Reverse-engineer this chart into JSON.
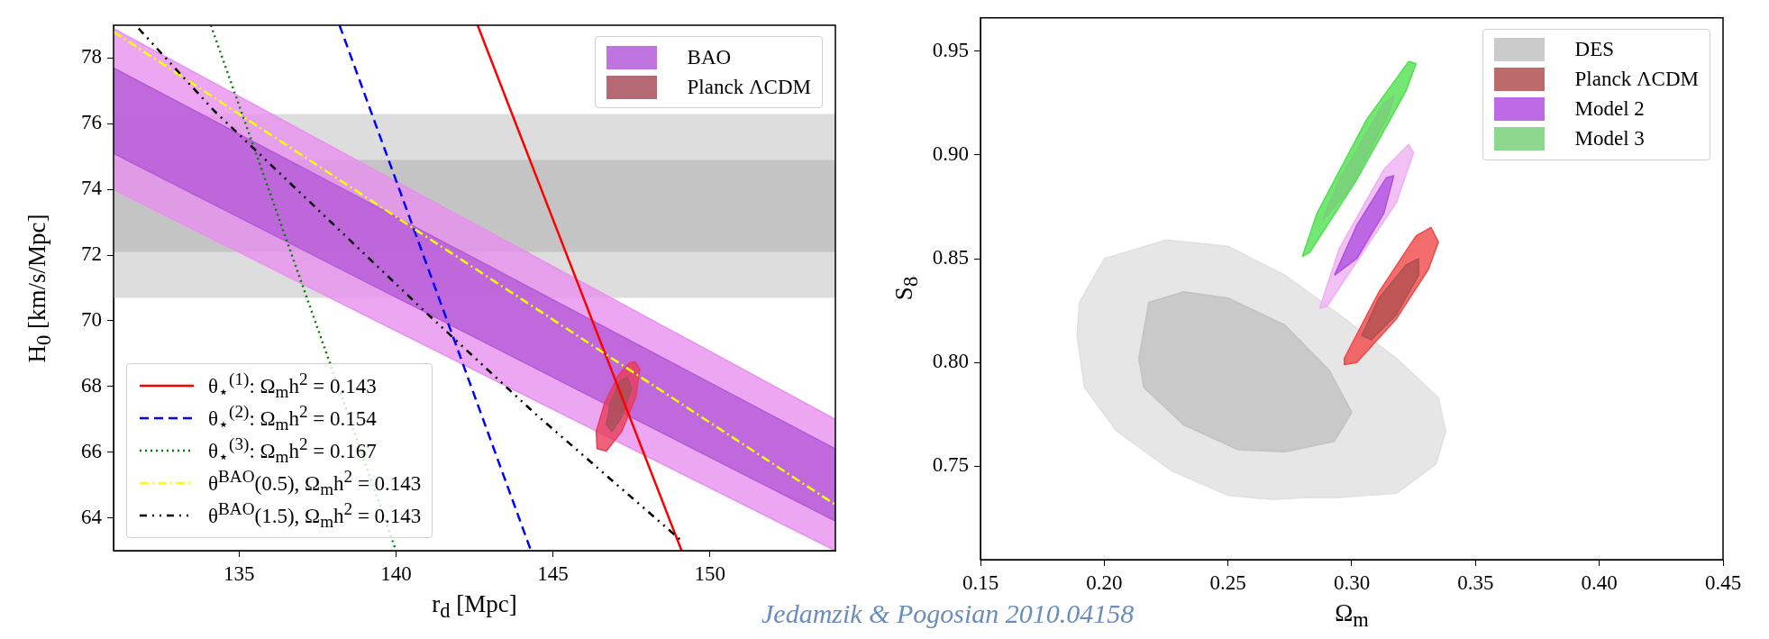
{
  "chart_data": [
    {
      "type": "area",
      "xlabel": "r$_{d}$ [Mpc]",
      "ylabel": "H$_{0}$ [km/s/Mpc]",
      "xlim": [
        131,
        154
      ],
      "ylim": [
        63,
        79
      ],
      "xticks": [
        135,
        140,
        145,
        150
      ],
      "yticks": [
        64,
        66,
        68,
        70,
        72,
        74,
        76,
        78
      ],
      "legend": "top right",
      "annotations": [
        "Jedamzik & Pogosian 2010.04158"
      ],
      "bands": [
        {
          "axis": "y",
          "from": 70.7,
          "to": 76.3,
          "color": "#dddddd"
        },
        {
          "axis": "y",
          "from": 72.1,
          "to": 74.9,
          "color": "#c4c4c4"
        }
      ],
      "series": [
        {
          "color": "#e890ee",
          "x": [
            131,
            154,
            154,
            131
          ],
          "values": [
            78.9,
            67.0,
            63.0,
            74.0
          ]
        },
        {
          "name": "BAO",
          "color": "#b45ad8",
          "x": [
            131,
            154,
            154,
            131
          ],
          "values": [
            77.7,
            66.1,
            63.9,
            75.1
          ]
        },
        {
          "color": "#e83c5a",
          "x": [
            147.61,
            147.77,
            147.64,
            147.19,
            146.7,
            146.41,
            146.38,
            146.65,
            147.1,
            147.43
          ],
          "values": [
            68.76,
            68.53,
            67.67,
            66.63,
            66.03,
            66.11,
            66.63,
            67.5,
            68.36,
            68.71
          ]
        },
        {
          "name": "Planck ΛCDM",
          "color": "#a8505a",
          "x": [
            147.37,
            147.5,
            147.19,
            146.88,
            146.7,
            146.83,
            147.14
          ],
          "values": [
            68.28,
            67.93,
            67.07,
            66.63,
            66.84,
            67.5,
            68.16
          ]
        },
        {
          "name": "θ$_{⋆}$$^{(1)}$: Ω$_{m}$h$^{2}$ = 0.143",
          "type": "line",
          "line_style": "solid",
          "color": "#ff0000",
          "x": [
            142.6,
            149.1
          ],
          "values": [
            79,
            63
          ]
        },
        {
          "name": "θ$_{⋆}$$^{(2)}$: Ω$_{m}$h$^{2}$ = 0.154",
          "type": "line",
          "line_style": "dashed",
          "color": "#0000ff",
          "x": [
            138.2,
            144.3
          ],
          "values": [
            79,
            63
          ]
        },
        {
          "name": "θ$_{⋆}$$^{(3)}$: Ω$_{m}$h$^{2}$ = 0.167",
          "type": "line",
          "line_style": "dotted",
          "color": "#008000",
          "x": [
            134.1,
            140.0
          ],
          "values": [
            79,
            63
          ]
        },
        {
          "name": "θ$^{BAO}$(0.5), Ω$_{m}$h$^{2}$ = 0.143",
          "type": "line",
          "line_style": "dashdot",
          "color": "#ffff00",
          "x": [
            131,
            154
          ],
          "values": [
            78.8,
            64.4
          ]
        },
        {
          "name": "θ$^{BAO}$(1.5), Ω$_{m}$h$^{2}$ = 0.143",
          "type": "line",
          "line_style": "dashdotdot",
          "color": "#000000",
          "x": [
            131.8,
            134.2,
            140.9,
            144.4,
            149.1
          ],
          "values": [
            78.9,
            76.4,
            70.3,
            67.2,
            63.3
          ]
        }
      ]
    },
    {
      "type": "area",
      "xlabel": "Ω$_{m}$",
      "ylabel": "S$_{8}$",
      "xlim": [
        0.15,
        0.45
      ],
      "ylim": [
        0.705,
        0.966
      ],
      "xticks": [
        {
          "value": 0.15,
          "label": "0.15"
        },
        {
          "value": 0.2,
          "label": "0.20"
        },
        {
          "value": 0.25,
          "label": "0.25"
        },
        {
          "value": 0.3,
          "label": "0.30"
        },
        {
          "value": 0.35,
          "label": "0.35"
        },
        {
          "value": 0.4,
          "label": "0.40"
        },
        {
          "value": 0.45,
          "label": "0.45"
        }
      ],
      "yticks": [
        {
          "value": 0.75,
          "label": "0.75"
        },
        {
          "value": 0.8,
          "label": "0.80"
        },
        {
          "value": 0.85,
          "label": "0.85"
        },
        {
          "value": 0.9,
          "label": "0.90"
        },
        {
          "value": 0.95,
          "label": "0.95"
        }
      ],
      "legend": "top right",
      "series": [
        {
          "color": "#e0e0e0",
          "x": [
            0.19,
            0.2,
            0.225,
            0.25,
            0.273,
            0.295,
            0.318,
            0.335,
            0.338,
            0.334,
            0.318,
            0.295,
            0.282,
            0.268,
            0.25,
            0.227,
            0.205,
            0.192,
            0.189
          ],
          "values": [
            0.829,
            0.85,
            0.859,
            0.856,
            0.842,
            0.823,
            0.802,
            0.783,
            0.767,
            0.751,
            0.737,
            0.735,
            0.735,
            0.734,
            0.736,
            0.748,
            0.767,
            0.788,
            0.813
          ]
        },
        {
          "name": "DES",
          "color": "#c2c2c2",
          "x": [
            0.214,
            0.218,
            0.232,
            0.25,
            0.273,
            0.291,
            0.3,
            0.293,
            0.273,
            0.254,
            0.232,
            0.216
          ],
          "values": [
            0.802,
            0.829,
            0.834,
            0.831,
            0.818,
            0.796,
            0.776,
            0.762,
            0.757,
            0.758,
            0.77,
            0.788
          ]
        },
        {
          "color": "#f04848",
          "x": [
            0.297,
            0.311,
            0.326,
            0.332,
            0.335,
            0.331,
            0.318,
            0.302,
            0.297
          ],
          "values": [
            0.802,
            0.834,
            0.861,
            0.865,
            0.858,
            0.845,
            0.821,
            0.8,
            0.799
          ]
        },
        {
          "name": "Planck ΛCDM",
          "color": "#b05050",
          "x": [
            0.304,
            0.311,
            0.322,
            0.327,
            0.327,
            0.318,
            0.308
          ],
          "values": [
            0.813,
            0.831,
            0.847,
            0.85,
            0.842,
            0.823,
            0.811
          ]
        },
        {
          "color": "#eeb0f2",
          "x": [
            0.287,
            0.295,
            0.313,
            0.323,
            0.325,
            0.318,
            0.3,
            0.29
          ],
          "values": [
            0.826,
            0.855,
            0.893,
            0.905,
            0.901,
            0.877,
            0.845,
            0.827
          ]
        },
        {
          "name": "Model 2",
          "color": "#b050e0",
          "x": [
            0.293,
            0.302,
            0.314,
            0.317,
            0.313,
            0.302
          ],
          "values": [
            0.842,
            0.866,
            0.889,
            0.89,
            0.872,
            0.85
          ]
        },
        {
          "color": "#50e050",
          "x": [
            0.28,
            0.286,
            0.306,
            0.323,
            0.326,
            0.322,
            0.302,
            0.283
          ],
          "values": [
            0.851,
            0.872,
            0.917,
            0.945,
            0.944,
            0.931,
            0.888,
            0.853
          ]
        },
        {
          "name": "Model 3",
          "color": "#7ad07a",
          "x": [
            0.288,
            0.295,
            0.313,
            0.317,
            0.315,
            0.3
          ],
          "values": [
            0.868,
            0.888,
            0.925,
            0.928,
            0.92,
            0.885
          ]
        }
      ]
    }
  ]
}
